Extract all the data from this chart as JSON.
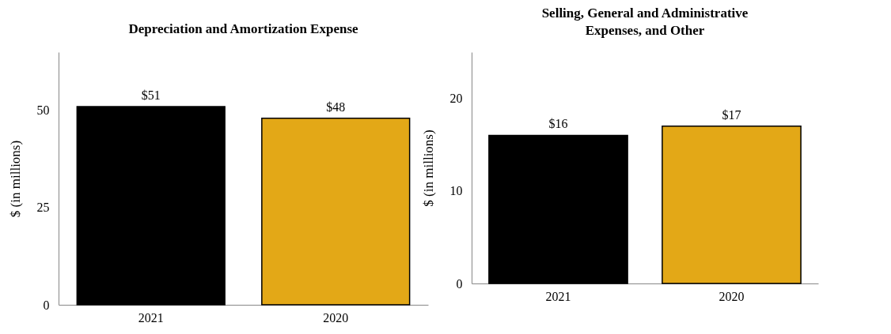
{
  "chart_data": [
    {
      "type": "bar",
      "title": "Depreciation and Amortization Expense",
      "ylabel": "$ (in millions)",
      "categories": [
        "2021",
        "2020"
      ],
      "values": [
        51,
        48
      ],
      "colors": [
        "#000000",
        "#e3a817"
      ],
      "value_labels": [
        "$51",
        "$48"
      ],
      "ylim": [
        0,
        65
      ],
      "yticks": [
        0,
        25,
        50
      ]
    },
    {
      "type": "bar",
      "title": "Selling, General and Administrative Expenses, and Other",
      "ylabel": "$ (in millions)",
      "categories": [
        "2021",
        "2020"
      ],
      "values": [
        16,
        17
      ],
      "colors": [
        "#000000",
        "#e3a817"
      ],
      "value_labels": [
        "$16",
        "$17"
      ],
      "ylim": [
        0,
        25
      ],
      "yticks": [
        0,
        10,
        20
      ]
    }
  ]
}
